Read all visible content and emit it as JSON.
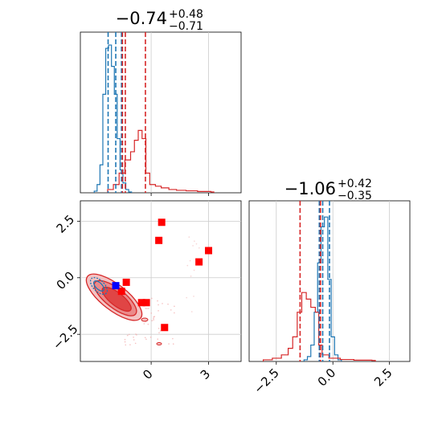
{
  "chart_data": [
    {
      "type": "histogram",
      "panel": "top-left",
      "title": "−0.74",
      "title_sup": "+0.48",
      "title_sub": "−0.71",
      "xlim": [
        -3.7,
        4.7
      ],
      "grid": true,
      "series": [
        {
          "name": "",
          "color": "#1f77b4",
          "quantiles": [
            -2.25,
            -1.85,
            -1.55
          ],
          "bins": [
            [
              -2.9,
              0.01
            ],
            [
              -2.75,
              0.05
            ],
            [
              -2.6,
              0.17
            ],
            [
              -2.45,
              0.6
            ],
            [
              -2.3,
              0.88
            ],
            [
              -2.15,
              0.9
            ],
            [
              -2.0,
              0.77
            ],
            [
              -1.85,
              0.6
            ],
            [
              -1.7,
              0.33
            ],
            [
              -1.55,
              0.14
            ],
            [
              -1.4,
              0.06
            ],
            [
              -1.25,
              0.02
            ],
            [
              -1.1,
              0.005
            ]
          ]
        },
        {
          "name": "",
          "color": "#d62728",
          "quantiles": [
            -1.5,
            -1.35,
            -0.3
          ],
          "bins": [
            [
              -2.2,
              0.02
            ],
            [
              -1.9,
              0.05
            ],
            [
              -1.6,
              0.12
            ],
            [
              -1.3,
              0.2
            ],
            [
              -1.0,
              0.25
            ],
            [
              -0.8,
              0.32
            ],
            [
              -0.6,
              0.38
            ],
            [
              -0.4,
              0.33
            ],
            [
              -0.2,
              0.12
            ],
            [
              0.0,
              0.05
            ],
            [
              0.3,
              0.04
            ],
            [
              0.6,
              0.03
            ],
            [
              1.0,
              0.02
            ],
            [
              1.4,
              0.015
            ],
            [
              1.9,
              0.012
            ],
            [
              2.5,
              0.008
            ],
            [
              3.2,
              0.005
            ]
          ]
        }
      ]
    },
    {
      "type": "scatter",
      "panel": "bottom-left",
      "xlim": [
        -3.7,
        4.7
      ],
      "ylim": [
        -3.7,
        3.4
      ],
      "xticks": [
        "0",
        "3"
      ],
      "xtick_values": [
        0,
        3
      ],
      "yticks": [
        "2.5",
        "0.0",
        "−2.5"
      ],
      "ytick_values": [
        2.5,
        0.0,
        -2.5
      ],
      "grid": true,
      "series": [
        {
          "name": "",
          "color": "#ff0000",
          "marker": "square",
          "points": [
            [
              0.55,
              2.45
            ],
            [
              0.4,
              1.65
            ],
            [
              3.0,
              1.2
            ],
            [
              2.5,
              0.7
            ],
            [
              -1.3,
              -0.2
            ],
            [
              -1.55,
              -0.6
            ],
            [
              -0.5,
              -1.1
            ],
            [
              -0.25,
              -1.1
            ],
            [
              0.7,
              -2.2
            ]
          ]
        },
        {
          "name": "",
          "color": "#0000ff",
          "marker": "square",
          "points": [
            [
              -1.85,
              -0.35
            ]
          ]
        }
      ]
    },
    {
      "type": "histogram",
      "panel": "bottom-right",
      "title": "−1.06",
      "title_sup": "+0.42",
      "title_sub": "−0.35",
      "xlim": [
        -3.7,
        3.4
      ],
      "xticks": [
        "−2.5",
        "0.0",
        "2.5"
      ],
      "xtick_values": [
        -2.5,
        0.0,
        2.5
      ],
      "grid": true,
      "series": [
        {
          "name": "",
          "color": "#1f77b4",
          "quantiles": [
            -0.6,
            -0.45,
            -0.15
          ],
          "bins": [
            [
              -1.2,
              0.01
            ],
            [
              -1.05,
              0.03
            ],
            [
              -0.9,
              0.1
            ],
            [
              -0.75,
              0.3
            ],
            [
              -0.6,
              0.6
            ],
            [
              -0.45,
              0.82
            ],
            [
              -0.3,
              0.88
            ],
            [
              -0.15,
              0.5
            ],
            [
              0.0,
              0.15
            ],
            [
              0.15,
              0.04
            ],
            [
              0.3,
              0.01
            ]
          ]
        },
        {
          "name": "",
          "color": "#d62728",
          "quantiles": [
            -1.45,
            -0.55,
            -0.55
          ],
          "bins": [
            [
              -3.0,
              0.01
            ],
            [
              -2.6,
              0.02
            ],
            [
              -2.2,
              0.04
            ],
            [
              -1.9,
              0.08
            ],
            [
              -1.7,
              0.15
            ],
            [
              -1.5,
              0.3
            ],
            [
              -1.3,
              0.42
            ],
            [
              -1.1,
              0.38
            ],
            [
              -0.9,
              0.33
            ],
            [
              -0.7,
              0.3
            ],
            [
              -0.55,
              0.1
            ],
            [
              -0.4,
              0.04
            ],
            [
              -0.1,
              0.02
            ],
            [
              0.4,
              0.012
            ],
            [
              1.0,
              0.008
            ],
            [
              1.8,
              0.006
            ]
          ]
        }
      ]
    }
  ]
}
